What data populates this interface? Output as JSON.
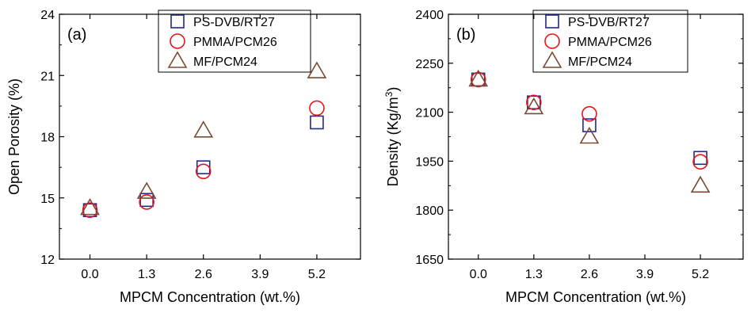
{
  "chart_data": [
    {
      "type": "scatter",
      "panel_label": "(a)",
      "xlabel": "MPCM Concentration (wt.%)",
      "ylabel": "Open Porosity (%)",
      "xlim": [
        -0.7,
        6.2
      ],
      "ylim": [
        12,
        24
      ],
      "xticks": [
        "0.0",
        "1.3",
        "2.6",
        "3.9",
        "5.2"
      ],
      "xtick_values": [
        0,
        1.3,
        2.6,
        3.9,
        5.2
      ],
      "yticks": [
        "12",
        "15",
        "18",
        "21",
        "24"
      ],
      "ytick_values": [
        12,
        15,
        18,
        21,
        24
      ],
      "legend_position": "top-right",
      "series": [
        {
          "name": "PS-DVB/RT27",
          "marker": "square",
          "color": "#1f2a8c",
          "x": [
            0,
            1.3,
            2.6,
            5.2
          ],
          "y": [
            14.4,
            14.9,
            16.5,
            18.7
          ]
        },
        {
          "name": "PMMA/PCM26",
          "marker": "circle",
          "color": "#e8141c",
          "x": [
            0,
            1.3,
            2.6,
            5.2
          ],
          "y": [
            14.4,
            14.8,
            16.3,
            19.4
          ]
        },
        {
          "name": "MF/PCM24",
          "marker": "triangle",
          "color": "#7a4a32",
          "x": [
            0,
            1.3,
            2.6,
            5.2
          ],
          "y": [
            14.5,
            15.3,
            18.3,
            21.2
          ]
        }
      ]
    },
    {
      "type": "scatter",
      "panel_label": "(b)",
      "xlabel": "MPCM Concentration (wt.%)",
      "ylabel": "Density (Kg/m",
      "ylabel_superscript": "3",
      "ylabel_suffix": ")",
      "xlim": [
        -0.7,
        6.2
      ],
      "ylim": [
        1650,
        2400
      ],
      "xticks": [
        "0.0",
        "1.3",
        "2.6",
        "3.9",
        "5.2"
      ],
      "xtick_values": [
        0,
        1.3,
        2.6,
        3.9,
        5.2
      ],
      "yticks": [
        "1650",
        "1800",
        "1950",
        "2100",
        "2250",
        "2400"
      ],
      "ytick_values": [
        1650,
        1800,
        1950,
        2100,
        2250,
        2400
      ],
      "legend_position": "top-right",
      "series": [
        {
          "name": "PS-DVB/RT27",
          "marker": "square",
          "color": "#1f2a8c",
          "x": [
            0,
            1.3,
            2.6,
            5.2
          ],
          "y": [
            2200,
            2130,
            2060,
            1960
          ]
        },
        {
          "name": "PMMA/PCM26",
          "marker": "circle",
          "color": "#e8141c",
          "x": [
            0,
            1.3,
            2.6,
            5.2
          ],
          "y": [
            2200,
            2130,
            2095,
            1948
          ]
        },
        {
          "name": "MF/PCM24",
          "marker": "triangle",
          "color": "#7a4a32",
          "x": [
            0,
            1.3,
            2.6,
            5.2
          ],
          "y": [
            2200,
            2115,
            2025,
            1875
          ]
        }
      ]
    }
  ]
}
